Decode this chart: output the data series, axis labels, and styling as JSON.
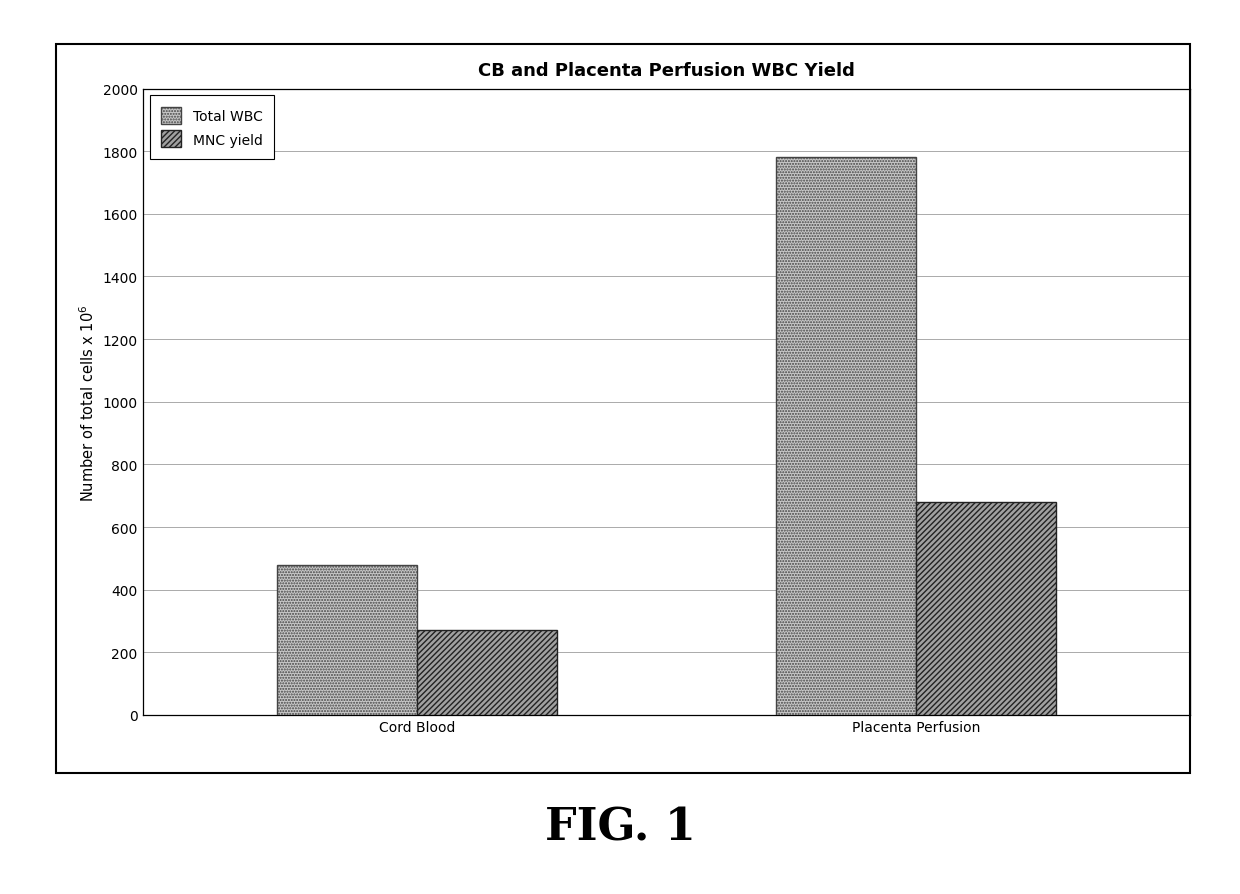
{
  "title": "CB and Placenta Perfusion WBC Yield",
  "categories": [
    "Cord Blood",
    "Placenta Perfusion"
  ],
  "series": [
    {
      "label": "Total WBC",
      "values": [
        480,
        1780
      ]
    },
    {
      "label": "MNC yield",
      "values": [
        270,
        680
      ]
    }
  ],
  "ylabel": "Number of total cells x 10⁶",
  "ylim": [
    0,
    2000
  ],
  "yticks": [
    0,
    200,
    400,
    600,
    800,
    1000,
    1200,
    1400,
    1600,
    1800,
    2000
  ],
  "bar_width": 0.28,
  "bar_color_1": "#c8c8c8",
  "bar_color_2": "#a0a0a0",
  "fig_caption": "FIG. 1",
  "background_color": "#ffffff",
  "title_fontsize": 13,
  "label_fontsize": 10.5,
  "tick_fontsize": 10,
  "legend_fontsize": 10,
  "caption_fontsize": 32
}
